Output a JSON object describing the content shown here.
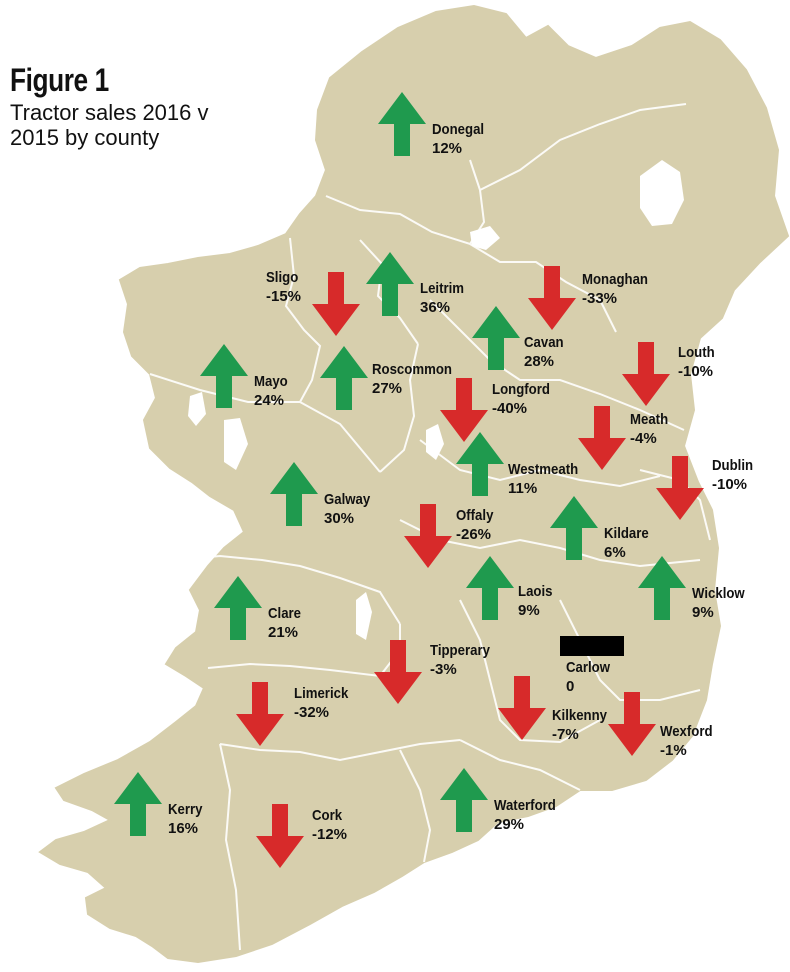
{
  "figure": {
    "label": "Figure 1",
    "subtitle_line1": "Tractor sales 2016 v",
    "subtitle_line2": "2015 by county"
  },
  "colors": {
    "land": "#d7cfad",
    "border": "#ffffff",
    "up": "#1f9a4e",
    "down": "#d72a2a",
    "flat": "#000000"
  },
  "counties": [
    {
      "name": "Donegal",
      "change": "12%",
      "direction": "up",
      "value": 12
    },
    {
      "name": "Sligo",
      "change": "-15%",
      "direction": "down",
      "value": -15
    },
    {
      "name": "Leitrim",
      "change": "36%",
      "direction": "up",
      "value": 36
    },
    {
      "name": "Monaghan",
      "change": "-33%",
      "direction": "down",
      "value": -33
    },
    {
      "name": "Cavan",
      "change": "28%",
      "direction": "up",
      "value": 28
    },
    {
      "name": "Louth",
      "change": "-10%",
      "direction": "down",
      "value": -10
    },
    {
      "name": "Mayo",
      "change": "24%",
      "direction": "up",
      "value": 24
    },
    {
      "name": "Roscommon",
      "change": "27%",
      "direction": "up",
      "value": 27
    },
    {
      "name": "Longford",
      "change": "-40%",
      "direction": "down",
      "value": -40
    },
    {
      "name": "Meath",
      "change": "-4%",
      "direction": "down",
      "value": -4
    },
    {
      "name": "Westmeath",
      "change": "11%",
      "direction": "up",
      "value": 11
    },
    {
      "name": "Dublin",
      "change": "-10%",
      "direction": "down",
      "value": -10
    },
    {
      "name": "Galway",
      "change": "30%",
      "direction": "up",
      "value": 30
    },
    {
      "name": "Offaly",
      "change": "-26%",
      "direction": "down",
      "value": -26
    },
    {
      "name": "Kildare",
      "change": "6%",
      "direction": "up",
      "value": 6
    },
    {
      "name": "Wicklow",
      "change": "9%",
      "direction": "up",
      "value": 9
    },
    {
      "name": "Clare",
      "change": "21%",
      "direction": "up",
      "value": 21
    },
    {
      "name": "Laois",
      "change": "9%",
      "direction": "up",
      "value": 9
    },
    {
      "name": "Carlow",
      "change": "0",
      "direction": "flat",
      "value": 0
    },
    {
      "name": "Tipperary",
      "change": "-3%",
      "direction": "down",
      "value": -3
    },
    {
      "name": "Limerick",
      "change": "-32%",
      "direction": "down",
      "value": -32
    },
    {
      "name": "Kilkenny",
      "change": "-7%",
      "direction": "down",
      "value": -7
    },
    {
      "name": "Wexford",
      "change": "-1%",
      "direction": "down",
      "value": -1
    },
    {
      "name": "Kerry",
      "change": "16%",
      "direction": "up",
      "value": 16
    },
    {
      "name": "Cork",
      "change": "-12%",
      "direction": "down",
      "value": -12
    },
    {
      "name": "Waterford",
      "change": "29%",
      "direction": "up",
      "value": 29
    }
  ]
}
